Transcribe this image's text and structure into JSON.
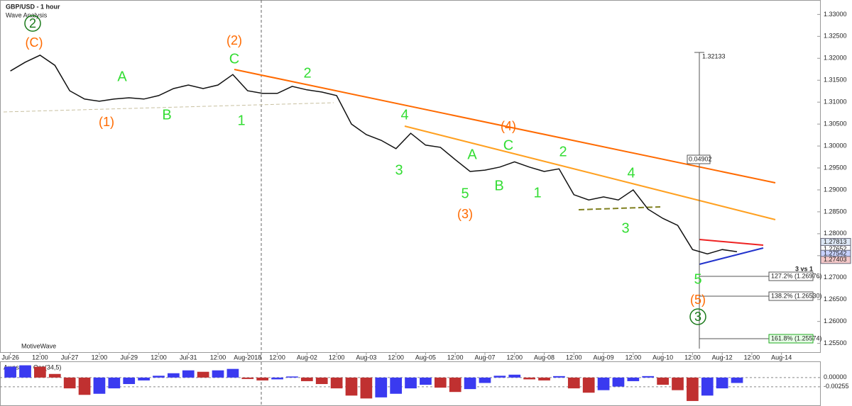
{
  "chart_data": {
    "type": "line",
    "title": "GBP/USD - 1 hour",
    "subtitle": "Wave Analysis",
    "watermark": "MotiveWave",
    "color": "#111111",
    "grid": true,
    "x": [
      0,
      0.5,
      1,
      1.5,
      2,
      2.5,
      3,
      3.5,
      4,
      4.5,
      5,
      5.5,
      6,
      6.5,
      7,
      7.5,
      8,
      8.5,
      9,
      9.5,
      10,
      10.5,
      11,
      11.5,
      12,
      12.5,
      13,
      13.5,
      14,
      14.5,
      15,
      15.5,
      16,
      16.5,
      17,
      17.5,
      18,
      18.5,
      19,
      19.5,
      20,
      20.5,
      21,
      21.5,
      22,
      22.5,
      23,
      23.5,
      24,
      24.5
    ],
    "values": [
      1.3171,
      1.3191,
      1.3207,
      1.3184,
      1.3126,
      1.3107,
      1.3102,
      1.3107,
      1.311,
      1.3107,
      1.3115,
      1.3131,
      1.3139,
      1.3131,
      1.3139,
      1.3163,
      1.3126,
      1.312,
      1.312,
      1.3136,
      1.3128,
      1.3123,
      1.3115,
      1.305,
      1.3026,
      1.3013,
      1.2994,
      1.3029,
      1.3002,
      1.2997,
      1.2969,
      1.2942,
      1.2945,
      1.2952,
      1.2964,
      1.2952,
      1.2942,
      1.2948,
      1.2889,
      1.2877,
      1.2884,
      1.2877,
      1.29,
      1.2856,
      1.2835,
      1.2819,
      1.2764,
      1.2754,
      1.2764,
      1.2759
    ],
    "xlim": [
      -0.35,
      27.3
    ],
    "ylim": [
      1.253,
      1.332
    ],
    "xticks": [
      {
        "value": 0,
        "label": "Jul-26"
      },
      {
        "value": 1,
        "label": "12:00"
      },
      {
        "value": 2,
        "label": "Jul-27"
      },
      {
        "value": 3,
        "label": "12:00"
      },
      {
        "value": 4,
        "label": "Jul-29"
      },
      {
        "value": 5,
        "label": "12:00"
      },
      {
        "value": 6,
        "label": "Jul-31"
      },
      {
        "value": 7,
        "label": "12:00"
      },
      {
        "value": 8,
        "label": "Aug-2018"
      },
      {
        "value": 9,
        "label": "12:00"
      },
      {
        "value": 10,
        "label": "Aug-02"
      },
      {
        "value": 11,
        "label": "12:00"
      },
      {
        "value": 12,
        "label": "Aug-03"
      },
      {
        "value": 13,
        "label": "12:00"
      },
      {
        "value": 14,
        "label": "Aug-05"
      },
      {
        "value": 15,
        "label": "12:00"
      },
      {
        "value": 16,
        "label": "Aug-07"
      },
      {
        "value": 17,
        "label": "12:00"
      },
      {
        "value": 18,
        "label": "Aug-08"
      },
      {
        "value": 19,
        "label": "12:00"
      },
      {
        "value": 20,
        "label": "Aug-09"
      },
      {
        "value": 21,
        "label": "12:00"
      },
      {
        "value": 22,
        "label": "Aug-10"
      },
      {
        "value": 23,
        "label": "12:00"
      },
      {
        "value": 24,
        "label": "Aug-12"
      },
      {
        "value": 25,
        "label": "12:00"
      },
      {
        "value": 26,
        "label": "Aug-14"
      }
    ],
    "yticks": [
      {
        "value": 1.33,
        "label": "1.33000"
      },
      {
        "value": 1.325,
        "label": "1.32500"
      },
      {
        "value": 1.32,
        "label": "1.32000"
      },
      {
        "value": 1.315,
        "label": "1.31500"
      },
      {
        "value": 1.31,
        "label": "1.31000"
      },
      {
        "value": 1.305,
        "label": "1.30500"
      },
      {
        "value": 1.3,
        "label": "1.30000"
      },
      {
        "value": 1.295,
        "label": "1.29500"
      },
      {
        "value": 1.29,
        "label": "1.29000"
      },
      {
        "value": 1.285,
        "label": "1.28500"
      },
      {
        "value": 1.28,
        "label": "1.28000"
      },
      {
        "value": 1.275,
        "label": "1.27500"
      },
      {
        "value": 1.27,
        "label": "1.27000"
      },
      {
        "value": 1.265,
        "label": "1.26500"
      },
      {
        "value": 1.26,
        "label": "1.26000"
      },
      {
        "value": 1.255,
        "label": "1.25500"
      }
    ],
    "price_markers": [
      {
        "value": 1.27813,
        "color": "#dde8f6"
      },
      {
        "value": 1.27652,
        "color": "#ffffff"
      },
      {
        "value": 1.27542,
        "color": "#c8d2ff"
      },
      {
        "value": 1.27403,
        "color": "#f4c8c8"
      }
    ],
    "measure_high": 1.32133,
    "measure_range": 0.04902,
    "fib_labels": [
      "127.2% (1.26976)",
      "138.2% (1.26530)",
      "161.8% (1.25574)"
    ],
    "ratio_label": "3 vs 1",
    "annotations": [
      "2",
      "(C)",
      "(2)",
      "C",
      "A",
      "2",
      "(1)",
      "B",
      "1",
      "4",
      "(4)",
      "C",
      "2",
      "4",
      "3",
      "A",
      "5",
      "B",
      "1",
      "3",
      "(3)",
      "5",
      "(5)",
      "3"
    ],
    "oscillator": {
      "title": "Awesome Osc(34,5)",
      "x": [
        0,
        0.5,
        1,
        1.5,
        2,
        2.5,
        3,
        3.5,
        4,
        4.5,
        5,
        5.5,
        6,
        6.5,
        7,
        7.5,
        8,
        8.5,
        9,
        9.5,
        10,
        10.5,
        11,
        11.5,
        12,
        12.5,
        13,
        13.5,
        14,
        14.5,
        15,
        15.5,
        16,
        16.5,
        17,
        17.5,
        18,
        18.5,
        19,
        19.5,
        20,
        20.5,
        21,
        21.5,
        22,
        22.5,
        23,
        23.5,
        24,
        24.5
      ],
      "values": [
        0.003,
        0.0034,
        0.003,
        0.001,
        -0.003,
        -0.0048,
        -0.0045,
        -0.003,
        -0.0018,
        -0.0008,
        0.0005,
        0.0012,
        0.002,
        0.0016,
        0.002,
        0.0024,
        -0.0004,
        -0.0008,
        -0.0005,
        0.0003,
        -0.001,
        -0.0018,
        -0.003,
        -0.005,
        -0.0058,
        -0.0055,
        -0.0045,
        -0.003,
        -0.002,
        -0.0028,
        -0.004,
        -0.0032,
        -0.0015,
        0.0005,
        0.0008,
        -0.0005,
        -0.0008,
        0.0004,
        -0.003,
        -0.0042,
        -0.0035,
        -0.0025,
        -0.001,
        0.0004,
        -0.002,
        -0.0035,
        -0.0065,
        -0.005,
        -0.003,
        -0.0015
      ],
      "ylim": [
        -0.0073,
        0.0041
      ],
      "yticks": [
        {
          "value": 0,
          "label": "0.00000"
        },
        -0.00255
      ],
      "up_color": "#3a3af0",
      "down_color": "#c03030"
    }
  }
}
